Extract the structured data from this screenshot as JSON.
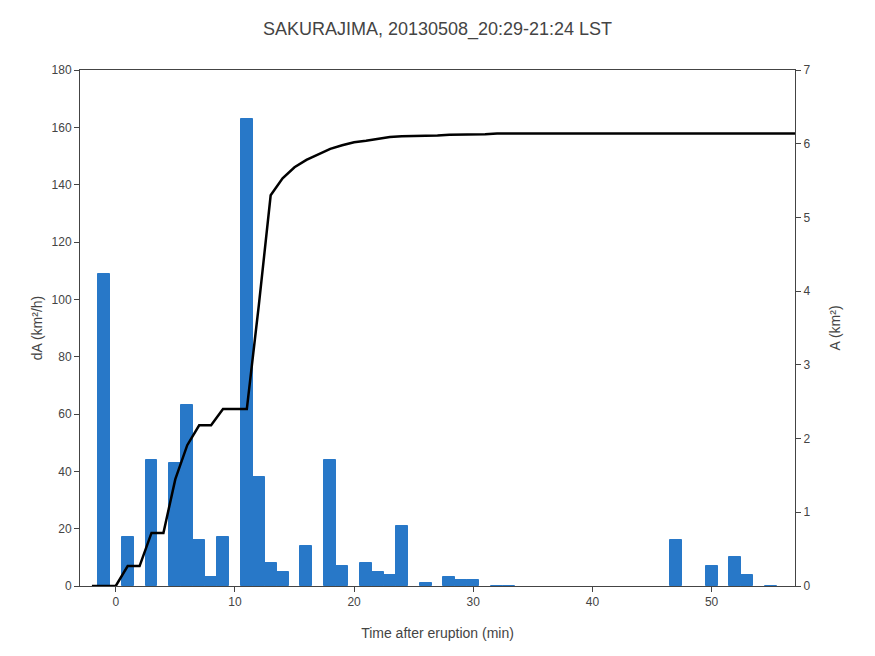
{
  "chart_data": {
    "type": "bar",
    "title": "SAKURAJIMA, 20130508_20:29-21:24 LST",
    "xlabel": "Time after eruption (min)",
    "ylabel": "dA (km²/h)",
    "y2label": "A (km²)",
    "series": [
      {
        "type": "bar",
        "color": "#2878c8",
        "x": [
          -1,
          1,
          3,
          5,
          6,
          7,
          8,
          9,
          11,
          12,
          13,
          14,
          16,
          18,
          19,
          21,
          22,
          23,
          24,
          26,
          28,
          29,
          30,
          32,
          33,
          47,
          50,
          52,
          53,
          55
        ],
        "values": [
          109,
          17,
          44,
          43,
          63,
          16,
          3,
          17,
          163,
          38,
          8,
          5,
          14,
          44,
          7,
          8,
          5,
          4,
          21,
          1,
          3,
          2,
          2,
          0,
          0,
          16,
          7,
          10,
          4,
          0
        ]
      },
      {
        "type": "line",
        "axis": "y2",
        "color": "#000000",
        "x": [
          -2,
          -1,
          0,
          1,
          2,
          3,
          4,
          5,
          6,
          7,
          8,
          9,
          10,
          11,
          12,
          13,
          14,
          15,
          16,
          17,
          18,
          19,
          20,
          21,
          22,
          23,
          24,
          25,
          26,
          27,
          28,
          29,
          30,
          31,
          32,
          35,
          40,
          45,
          50,
          55,
          57
        ],
        "values": [
          0.0,
          0.0,
          0.0,
          0.27,
          0.27,
          0.72,
          0.72,
          1.45,
          1.91,
          2.18,
          2.18,
          2.4,
          2.4,
          2.4,
          3.8,
          5.3,
          5.53,
          5.68,
          5.78,
          5.85,
          5.93,
          5.98,
          6.02,
          6.04,
          6.07,
          6.09,
          6.1,
          6.1,
          6.11,
          6.11,
          6.12,
          6.12,
          6.13,
          6.13,
          6.14,
          6.14,
          6.14,
          6.14,
          6.14,
          6.14,
          6.14
        ]
      }
    ],
    "xlim": [
      -3,
      57
    ],
    "xticks": [
      0,
      10,
      20,
      30,
      40,
      50
    ],
    "ylim": [
      0,
      180
    ],
    "yticks": [
      0,
      20,
      40,
      60,
      80,
      100,
      120,
      140,
      160,
      180
    ],
    "y2lim": [
      0,
      7
    ],
    "y2ticks": [
      0,
      1,
      2,
      3,
      4,
      5,
      6,
      7
    ],
    "grid": false
  }
}
